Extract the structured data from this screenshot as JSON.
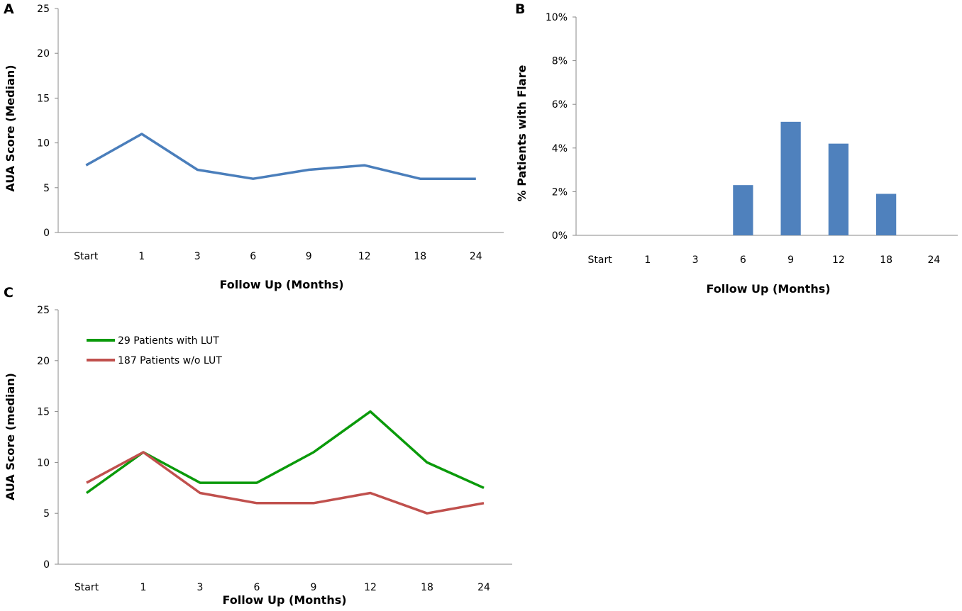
{
  "chart_data": [
    {
      "id": "A",
      "type": "line",
      "panel_label": "A",
      "title": "",
      "xlabel": "Follow Up (Months)",
      "ylabel": "AUA Score (Median)",
      "categories": [
        "Start",
        "1",
        "3",
        "6",
        "9",
        "12",
        "18",
        "24"
      ],
      "yticks": [
        "0",
        "5",
        "10",
        "15",
        "20",
        "25"
      ],
      "ylim": [
        0,
        25
      ],
      "grid": false,
      "series": [
        {
          "name": "AUA Score (Median)",
          "color": "#4a7ebb",
          "values": [
            7.5,
            11,
            7,
            6,
            7,
            7.5,
            6,
            6
          ]
        }
      ]
    },
    {
      "id": "B",
      "type": "bar",
      "panel_label": "B",
      "title": "",
      "xlabel": "Follow Up (Months)",
      "ylabel": "% Patients with Flare",
      "categories": [
        "Start",
        "1",
        "3",
        "6",
        "9",
        "12",
        "18",
        "24"
      ],
      "yticks": [
        "0%",
        "2%",
        "4%",
        "6%",
        "8%",
        "10%"
      ],
      "ylim": [
        0,
        10
      ],
      "grid": false,
      "series": [
        {
          "name": "% Patients with Flare",
          "color": "#4f81bd",
          "values": [
            0,
            0,
            0,
            2.3,
            5.2,
            4.2,
            1.9,
            0
          ]
        }
      ]
    },
    {
      "id": "C",
      "type": "line",
      "panel_label": "C",
      "title": "",
      "xlabel": "Follow Up (Months)",
      "ylabel": "AUA Score (median)",
      "categories": [
        "Start",
        "1",
        "3",
        "6",
        "9",
        "12",
        "18",
        "24"
      ],
      "yticks": [
        "0",
        "5",
        "10",
        "15",
        "20",
        "25"
      ],
      "ylim": [
        0,
        25
      ],
      "grid": false,
      "legend_position": "top-left",
      "series": [
        {
          "name": "29 Patients with LUT",
          "color": "#0a9a0a",
          "values": [
            7,
            11,
            8,
            8,
            11,
            15,
            10,
            7.5
          ]
        },
        {
          "name": "187 Patients w/o LUT",
          "color": "#c0504d",
          "values": [
            8,
            11,
            7,
            6,
            6,
            7,
            5,
            6
          ]
        }
      ]
    }
  ]
}
